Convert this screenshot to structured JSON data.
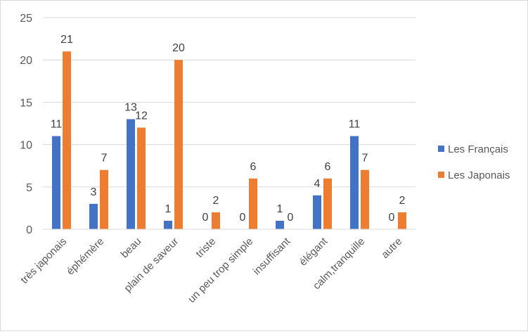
{
  "chart_data": {
    "type": "bar",
    "title": "",
    "xlabel": "",
    "ylabel": "",
    "ylim": [
      0,
      25
    ],
    "yticks": [
      0,
      5,
      10,
      15,
      20,
      25
    ],
    "grid": "horizontal",
    "legend_position": "right",
    "categories": [
      "très japonais",
      "éphémère",
      "beau",
      "plain de saveur",
      "triste",
      "un peu trop simple",
      "insuffisant",
      "élégant",
      "calm,tranquille",
      "autre"
    ],
    "series": [
      {
        "name": "Les Français",
        "color": "#4472c4",
        "values": [
          11,
          3,
          13,
          1,
          0,
          0,
          1,
          4,
          11,
          0
        ]
      },
      {
        "name": "Les Japonais",
        "color": "#ed7d31",
        "values": [
          21,
          7,
          12,
          20,
          2,
          6,
          0,
          6,
          7,
          2
        ]
      }
    ],
    "data_labels": true
  }
}
